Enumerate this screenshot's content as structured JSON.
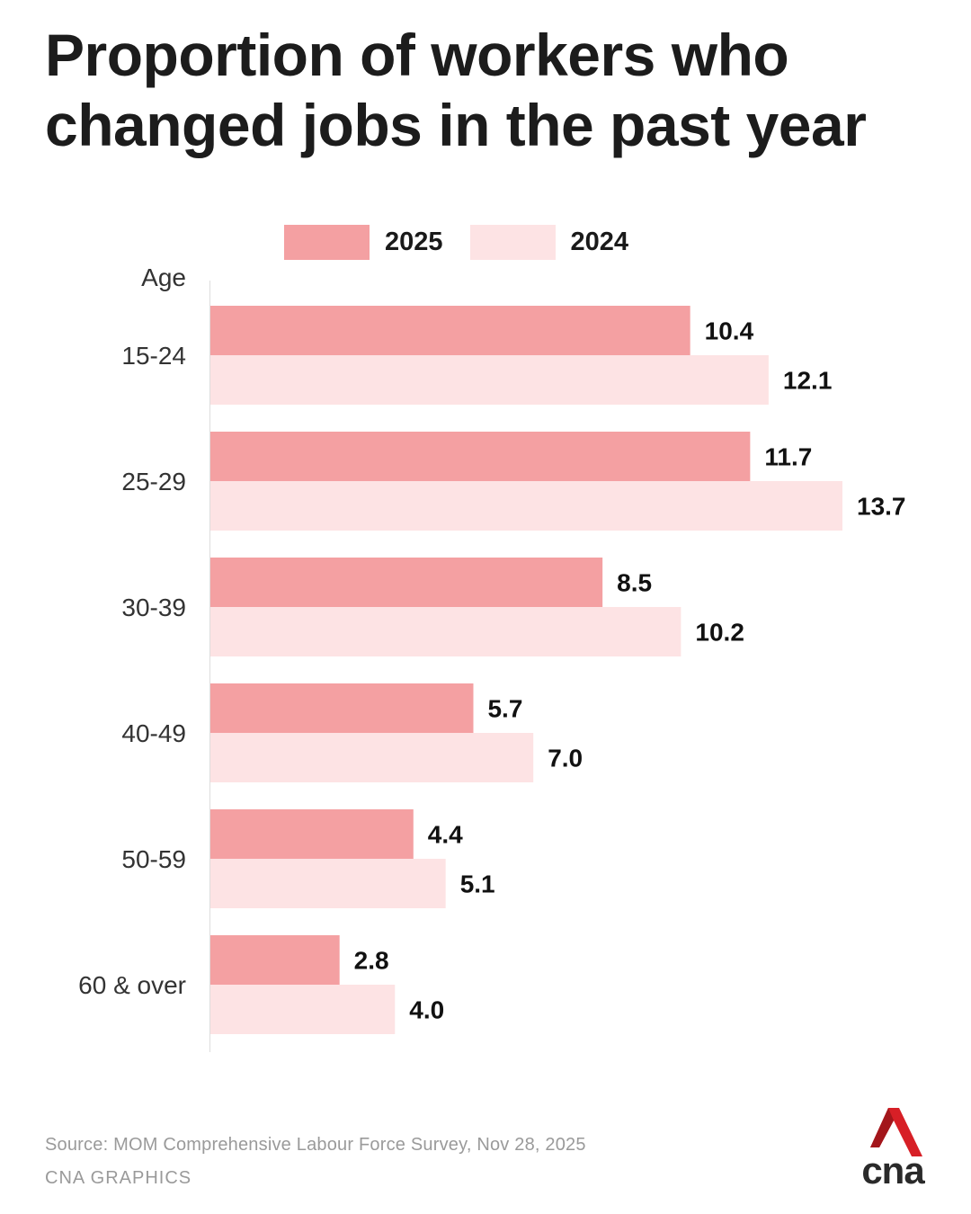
{
  "title": {
    "line1": "Proportion of workers who",
    "line2": "changed jobs in the past year"
  },
  "legend": [
    {
      "label": "2025",
      "color": "#f4a0a2"
    },
    {
      "label": "2024",
      "color": "#fde3e4"
    }
  ],
  "chart_data": {
    "type": "bar",
    "orientation": "horizontal",
    "ylabel": "Age",
    "categories": [
      "15-24",
      "25-29",
      "30-39",
      "40-49",
      "50-59",
      "60 & over"
    ],
    "series": [
      {
        "name": "2025",
        "color": "#f4a0a2",
        "values": [
          10.4,
          11.7,
          8.5,
          5.7,
          4.4,
          2.8
        ]
      },
      {
        "name": "2024",
        "color": "#fde3e4",
        "values": [
          12.1,
          13.7,
          10.2,
          7.0,
          5.1,
          4.0
        ]
      }
    ],
    "xlim": [
      0,
      13.7
    ],
    "grid": false,
    "legend_position": "top"
  },
  "footer": {
    "source": "Source: MOM Comprehensive Labour Force Survey, Nov 28, 2025",
    "credit": "CNA GRAPHICS"
  },
  "logo": {
    "text": "cna"
  }
}
